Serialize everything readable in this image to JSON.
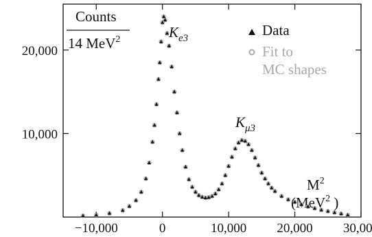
{
  "chart_data": {
    "type": "scatter",
    "title": "",
    "ylabel_line1": "Counts",
    "ylabel_line2_prefix": "14 MeV",
    "ylabel_line2_sup": "2",
    "xlabel_line1_prefix": "M",
    "xlabel_line1_sup": "2",
    "xlabel_line2_prefix": "(MeV",
    "xlabel_line2_sup": "2",
    "xlabel_line2_suffix": " )",
    "xlim": [
      -15000,
      30000
    ],
    "ylim": [
      0,
      25500
    ],
    "x_ticks": [
      -10000,
      0,
      10000,
      20000,
      30000
    ],
    "x_tick_labels": [
      "−10,000",
      "0",
      "10,000",
      "20,000",
      "30,000"
    ],
    "y_ticks": [
      10000,
      20000
    ],
    "y_tick_labels": [
      "10,000",
      "20,000"
    ],
    "grid": false,
    "legend": {
      "placement": "top-right",
      "entries": [
        {
          "label": "Data",
          "marker": "filled-triangle",
          "color": "#111111"
        },
        {
          "label": "Fit to",
          "label2": "MC shapes",
          "marker": "open-circle",
          "color": "#a8a8a8"
        }
      ]
    },
    "annotations": [
      {
        "id": "ke3",
        "base": "K",
        "sub": "e3"
      },
      {
        "id": "kmu3",
        "base": "K",
        "sub": "μ3"
      }
    ],
    "series": [
      {
        "name": "Data",
        "marker": "filled-triangle",
        "color": "#111111",
        "points": [
          [
            -12000,
            150
          ],
          [
            -10000,
            250
          ],
          [
            -8000,
            450
          ],
          [
            -6000,
            800
          ],
          [
            -5000,
            1300
          ],
          [
            -4000,
            2000
          ],
          [
            -3200,
            3000
          ],
          [
            -2500,
            4600
          ],
          [
            -2000,
            6500
          ],
          [
            -1500,
            9000
          ],
          [
            -1200,
            11000
          ],
          [
            -900,
            13500
          ],
          [
            -600,
            16500
          ],
          [
            -400,
            18500
          ],
          [
            -200,
            21000
          ],
          [
            0,
            23300
          ],
          [
            200,
            24000
          ],
          [
            400,
            23600
          ],
          [
            700,
            22000
          ],
          [
            1000,
            20500
          ],
          [
            1400,
            18000
          ],
          [
            1800,
            15000
          ],
          [
            2200,
            12500
          ],
          [
            2600,
            10000
          ],
          [
            3000,
            8000
          ],
          [
            3500,
            6000
          ],
          [
            4000,
            4500
          ],
          [
            4500,
            3600
          ],
          [
            5000,
            3000
          ],
          [
            5500,
            2600
          ],
          [
            6000,
            2400
          ],
          [
            6500,
            2300
          ],
          [
            7000,
            2350
          ],
          [
            7500,
            2500
          ],
          [
            8000,
            2800
          ],
          [
            8500,
            3300
          ],
          [
            9000,
            4000
          ],
          [
            9500,
            5000
          ],
          [
            10000,
            6100
          ],
          [
            10500,
            7200
          ],
          [
            11000,
            8200
          ],
          [
            11500,
            8900
          ],
          [
            12000,
            9200
          ],
          [
            12500,
            9100
          ],
          [
            13000,
            8700
          ],
          [
            13500,
            8000
          ],
          [
            14000,
            7100
          ],
          [
            14500,
            6200
          ],
          [
            15000,
            5300
          ],
          [
            15500,
            4600
          ],
          [
            16000,
            4000
          ],
          [
            16500,
            3500
          ],
          [
            17000,
            3100
          ],
          [
            18000,
            2500
          ],
          [
            19000,
            2100
          ],
          [
            20000,
            1800
          ],
          [
            21000,
            1500
          ],
          [
            22000,
            1250
          ],
          [
            23000,
            1050
          ],
          [
            24000,
            850
          ],
          [
            25000,
            700
          ],
          [
            26000,
            550
          ],
          [
            27000,
            400
          ],
          [
            28000,
            250
          ]
        ]
      },
      {
        "name": "Fit to MC shapes",
        "marker": "open-circle",
        "color": "#a8a8a8",
        "points": [
          [
            -12000,
            150
          ],
          [
            -10000,
            250
          ],
          [
            -8000,
            450
          ],
          [
            -6000,
            800
          ],
          [
            -5000,
            1300
          ],
          [
            -4000,
            2000
          ],
          [
            -3200,
            3000
          ],
          [
            -2500,
            4600
          ],
          [
            -2000,
            6500
          ],
          [
            -1500,
            9000
          ],
          [
            -1200,
            11000
          ],
          [
            -900,
            13500
          ],
          [
            -600,
            16500
          ],
          [
            -400,
            18500
          ],
          [
            -200,
            21000
          ],
          [
            0,
            23300
          ],
          [
            200,
            24000
          ],
          [
            400,
            23600
          ],
          [
            700,
            22000
          ],
          [
            1000,
            20500
          ],
          [
            1400,
            18000
          ],
          [
            1800,
            15000
          ],
          [
            2200,
            12500
          ],
          [
            2600,
            10000
          ],
          [
            3000,
            8000
          ],
          [
            3500,
            6000
          ],
          [
            4000,
            4500
          ],
          [
            4500,
            3600
          ],
          [
            5000,
            3000
          ],
          [
            5500,
            2600
          ],
          [
            6000,
            2400
          ],
          [
            6500,
            2300
          ],
          [
            7000,
            2350
          ],
          [
            7500,
            2500
          ],
          [
            8000,
            2800
          ],
          [
            8500,
            3300
          ],
          [
            9000,
            4000
          ],
          [
            9500,
            5000
          ],
          [
            10000,
            6100
          ],
          [
            10500,
            7200
          ],
          [
            11000,
            8200
          ],
          [
            11500,
            8900
          ],
          [
            12000,
            9200
          ],
          [
            12500,
            9100
          ],
          [
            13000,
            8700
          ],
          [
            13500,
            8000
          ],
          [
            14000,
            7100
          ],
          [
            14500,
            6200
          ],
          [
            15000,
            5300
          ],
          [
            15500,
            4600
          ],
          [
            16000,
            4000
          ],
          [
            16500,
            3500
          ],
          [
            17000,
            3100
          ],
          [
            18000,
            2500
          ],
          [
            19000,
            2100
          ],
          [
            20000,
            1800
          ],
          [
            21000,
            1500
          ],
          [
            22000,
            1250
          ],
          [
            23000,
            1050
          ],
          [
            24000,
            850
          ],
          [
            25000,
            700
          ],
          [
            26000,
            550
          ],
          [
            27000,
            400
          ],
          [
            28000,
            250
          ]
        ]
      }
    ]
  }
}
